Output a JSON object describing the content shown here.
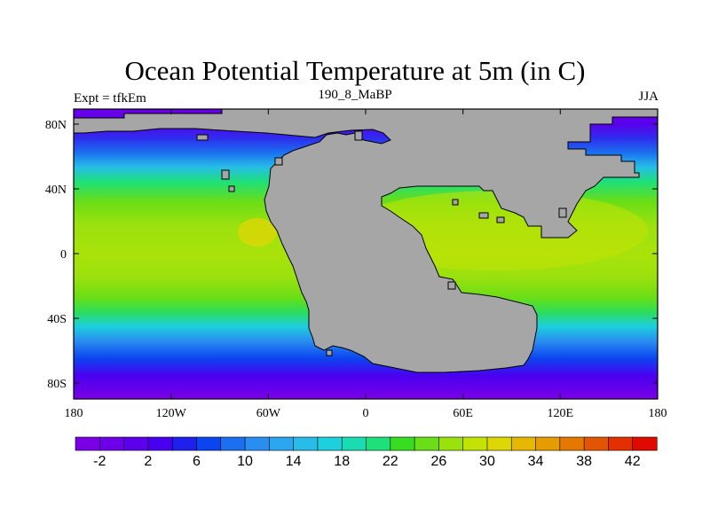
{
  "title": "Ocean Potential Temperature at 5m (in C)",
  "left_label": "Expt = tfkEm",
  "center_label": "190_8_MaBP",
  "right_label": "JJA",
  "colors": {
    "land": "#a6a6a6",
    "scale": [
      "#7a00e6",
      "#6d00e8",
      "#5c00ec",
      "#4a00f0",
      "#2020ee",
      "#0b45f0",
      "#1b6ff0",
      "#2a8ef0",
      "#2ca6ee",
      "#27bde8",
      "#1ecfde",
      "#19dcb2",
      "#1de07a",
      "#36dd20",
      "#6ade16",
      "#9be10e",
      "#c3e305",
      "#dcd705",
      "#e6b800",
      "#e59c00",
      "#e47800",
      "#e35500",
      "#e23000",
      "#e10a00"
    ]
  },
  "x_ticks": [
    "180",
    "120W",
    "60W",
    "0",
    "60E",
    "120E",
    "180"
  ],
  "y_ticks": [
    "80N",
    "40N",
    "0",
    "40S",
    "80S"
  ],
  "colorbar_labels": [
    "-2",
    "2",
    "6",
    "10",
    "14",
    "18",
    "22",
    "26",
    "30",
    "34",
    "38",
    "42"
  ]
}
